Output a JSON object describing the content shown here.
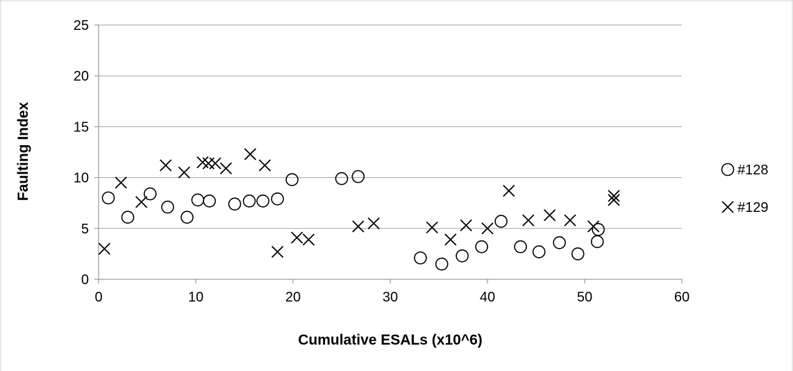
{
  "chart_data": {
    "type": "scatter",
    "title": "",
    "xlabel": "Cumulative ESALs (x10^6)",
    "ylabel": "Faulting Index",
    "xlim": [
      0,
      60
    ],
    "ylim": [
      0,
      25
    ],
    "xticks": [
      "0",
      "10",
      "20",
      "30",
      "40",
      "50",
      "60"
    ],
    "yticks": [
      "0",
      "5",
      "10",
      "15",
      "20",
      "25"
    ],
    "grid": "horizontal",
    "legend_position": "right",
    "series": [
      {
        "name": "#128",
        "marker": "circle",
        "color": "#000000",
        "points": [
          [
            1.0,
            8.0
          ],
          [
            3.0,
            6.1
          ],
          [
            5.3,
            8.4
          ],
          [
            7.1,
            7.1
          ],
          [
            9.1,
            6.1
          ],
          [
            10.2,
            7.8
          ],
          [
            11.4,
            7.7
          ],
          [
            14.0,
            7.4
          ],
          [
            15.5,
            7.7
          ],
          [
            16.9,
            7.7
          ],
          [
            18.4,
            7.9
          ],
          [
            19.9,
            9.8
          ],
          [
            25.0,
            9.9
          ],
          [
            26.7,
            10.1
          ],
          [
            33.1,
            2.1
          ],
          [
            35.3,
            1.5
          ],
          [
            37.4,
            2.3
          ],
          [
            39.4,
            3.2
          ],
          [
            41.4,
            5.7
          ],
          [
            43.4,
            3.2
          ],
          [
            45.3,
            2.7
          ],
          [
            47.4,
            3.6
          ],
          [
            49.3,
            2.5
          ],
          [
            51.3,
            3.7
          ],
          [
            51.4,
            4.9
          ]
        ]
      },
      {
        "name": "#129",
        "marker": "x",
        "color": "#000000",
        "points": [
          [
            0.6,
            3.0
          ],
          [
            2.3,
            9.5
          ],
          [
            4.4,
            7.6
          ],
          [
            6.9,
            11.2
          ],
          [
            8.8,
            10.5
          ],
          [
            10.7,
            11.5
          ],
          [
            11.3,
            11.4
          ],
          [
            12.0,
            11.4
          ],
          [
            13.1,
            10.9
          ],
          [
            15.6,
            12.3
          ],
          [
            17.1,
            11.2
          ],
          [
            18.4,
            2.7
          ],
          [
            20.4,
            4.1
          ],
          [
            21.6,
            3.9
          ],
          [
            26.7,
            5.2
          ],
          [
            28.3,
            5.5
          ],
          [
            34.3,
            5.1
          ],
          [
            36.2,
            3.9
          ],
          [
            37.8,
            5.3
          ],
          [
            40.0,
            5.0
          ],
          [
            42.2,
            8.7
          ],
          [
            44.2,
            5.8
          ],
          [
            46.4,
            6.3
          ],
          [
            48.5,
            5.8
          ],
          [
            50.9,
            5.2
          ],
          [
            53.0,
            8.2
          ],
          [
            53.0,
            7.8
          ]
        ]
      }
    ]
  }
}
